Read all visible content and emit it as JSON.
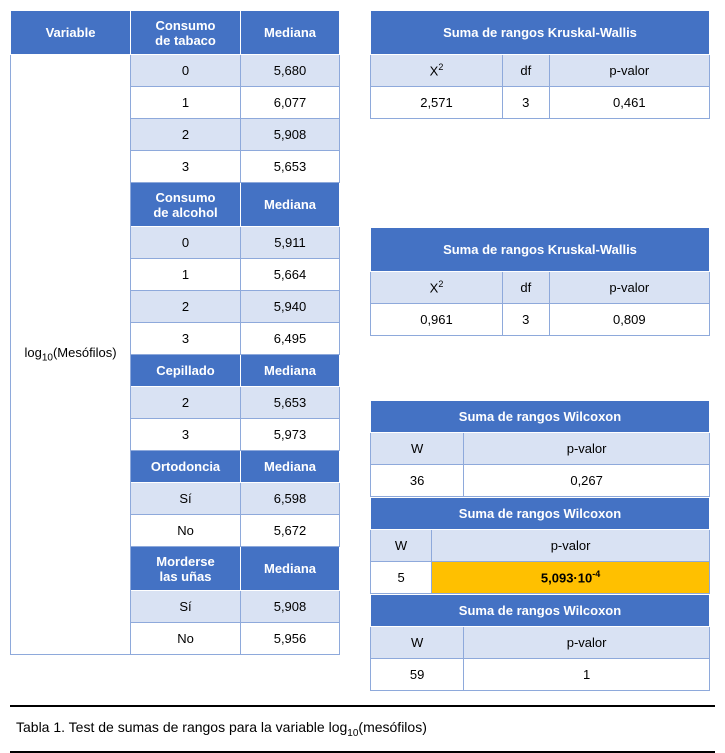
{
  "colors": {
    "header_bg": "#4472c4",
    "header_fg": "#ffffff",
    "sub_bg": "#d9e2f3",
    "row_alt_bg": "#ffffff",
    "border": "#8ea9db",
    "highlight_bg": "#ffc000"
  },
  "left": {
    "col_variable": "Variable",
    "variable_value_html": "log<sub>10</sub>(Mesófilos)",
    "col_mediana": "Mediana",
    "sections": [
      {
        "name": "Consumo de tabaco",
        "header_tall": true,
        "rows": [
          {
            "k": "0",
            "v": "5,680"
          },
          {
            "k": "1",
            "v": "6,077"
          },
          {
            "k": "2",
            "v": "5,908"
          },
          {
            "k": "3",
            "v": "5,653"
          }
        ]
      },
      {
        "name": "Consumo de alcohol",
        "header_tall": true,
        "rows": [
          {
            "k": "0",
            "v": "5,911"
          },
          {
            "k": "1",
            "v": "5,664"
          },
          {
            "k": "2",
            "v": "5,940"
          },
          {
            "k": "3",
            "v": "6,495"
          }
        ]
      },
      {
        "name": "Cepillado",
        "header_tall": false,
        "rows": [
          {
            "k": "2",
            "v": "5,653"
          },
          {
            "k": "3",
            "v": "5,973"
          }
        ]
      },
      {
        "name": "Ortodoncia",
        "header_tall": false,
        "rows": [
          {
            "k": "Sí",
            "v": "6,598"
          },
          {
            "k": "No",
            "v": "5,672"
          }
        ]
      },
      {
        "name": "Morderse las uñas",
        "header_tall": true,
        "rows": [
          {
            "k": "Sí",
            "v": "5,908"
          },
          {
            "k": "No",
            "v": "5,956"
          }
        ]
      }
    ]
  },
  "right": {
    "blocks": [
      {
        "title": "Suma de rangos Kruskal-Wallis",
        "title_tall": true,
        "cols": [
          {
            "html": "X<sup>2</sup>"
          },
          {
            "html": "df"
          },
          {
            "html": "p-valor"
          }
        ],
        "data": [
          "2,571",
          "3",
          "0,461"
        ],
        "gap_after": 108
      },
      {
        "title": "Suma de rangos Kruskal-Wallis",
        "title_tall": true,
        "cols": [
          {
            "html": "X<sup>2</sup>"
          },
          {
            "html": "df"
          },
          {
            "html": "p-valor"
          }
        ],
        "data": [
          "0,961",
          "3",
          "0,809"
        ],
        "gap_after": 64
      },
      {
        "title": "Suma de rangos Wilcoxon",
        "title_tall": false,
        "cols": [
          {
            "html": "W"
          },
          {
            "html": "p-valor"
          }
        ],
        "data": [
          "36",
          "0,267"
        ],
        "gap_after": 0
      },
      {
        "title": "Suma de rangos Wilcoxon",
        "title_tall": false,
        "cols": [
          {
            "html": "W"
          },
          {
            "html": "p-valor"
          }
        ],
        "data": [
          "5",
          {
            "html": "5,093·10<sup>-4</sup>",
            "highlight": true
          }
        ],
        "gap_after": 0
      },
      {
        "title": "Suma de rangos Wilcoxon",
        "title_tall": false,
        "cols": [
          {
            "html": "W"
          },
          {
            "html": "p-valor"
          }
        ],
        "data": [
          "59",
          "1"
        ],
        "gap_after": 0
      }
    ]
  },
  "caption_html": "Tabla 1. Test de sumas de rangos para la variable log<sub>10</sub>(mesófilos)"
}
